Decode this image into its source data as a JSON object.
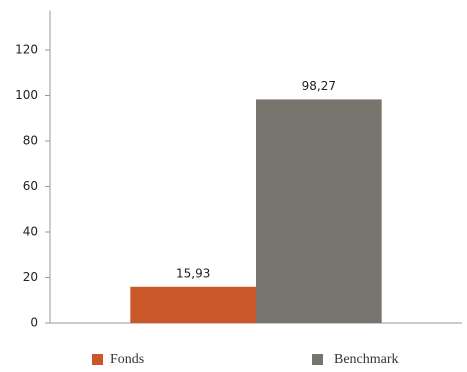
{
  "chart_data": {
    "type": "bar",
    "categories": [
      null
    ],
    "series": [
      {
        "name": "Fonds",
        "color": "#c9572a",
        "values": [
          15.93
        ],
        "value_labels": [
          "15,93"
        ]
      },
      {
        "name": "Benchmark",
        "color": "#77746d",
        "values": [
          98.27
        ],
        "value_labels": [
          "98,27"
        ]
      }
    ],
    "ylim": [
      0,
      140
    ],
    "yticks": [
      0,
      20,
      40,
      60,
      80,
      100,
      120
    ],
    "grid": false,
    "legend": "bottom"
  }
}
